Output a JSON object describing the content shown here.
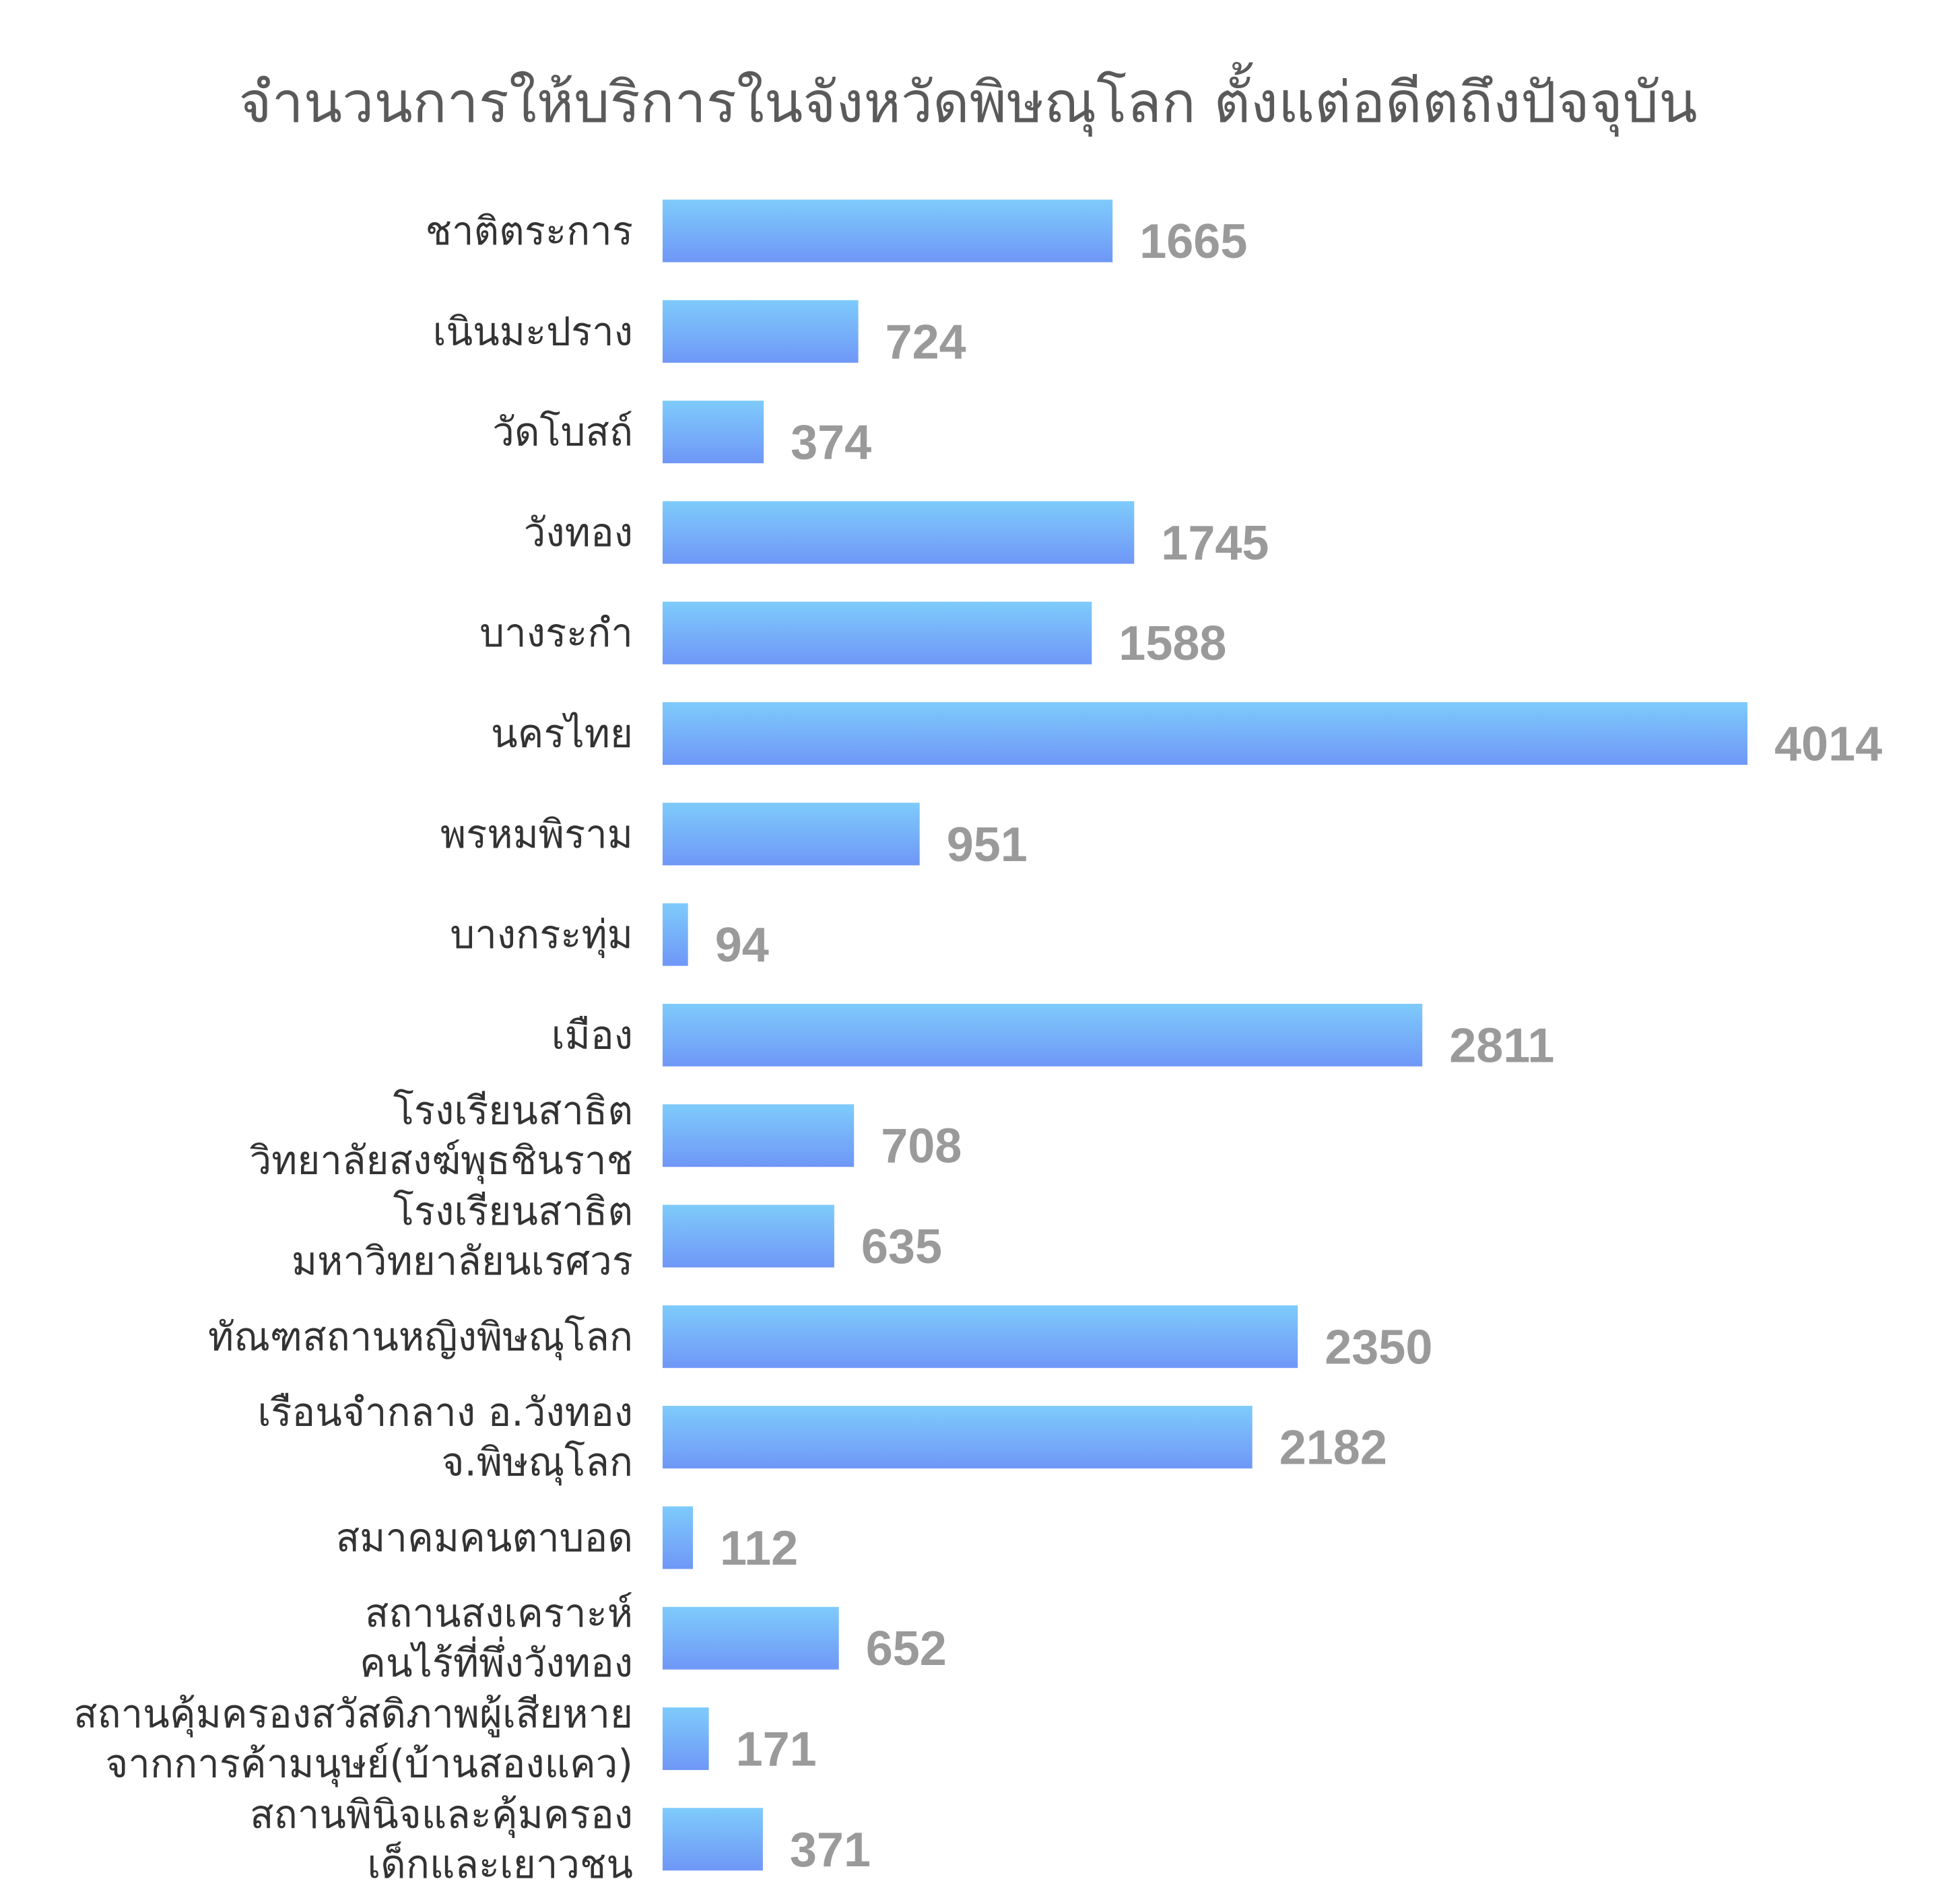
{
  "chart_data": {
    "type": "bar",
    "orientation": "horizontal",
    "title": "จำนวนการให้บริการในจังหวัดพิษณุโลก ตั้งแต่อดีตถึงปัจจุบัน",
    "categories": [
      [
        "ชาติตระการ"
      ],
      [
        "เนินมะปราง"
      ],
      [
        "วัดโบสถ์"
      ],
      [
        "วังทอง"
      ],
      [
        "บางระกำ"
      ],
      [
        "นครไทย"
      ],
      [
        "พรหมพิราม"
      ],
      [
        "บางกระทุ่ม"
      ],
      [
        "เมือง"
      ],
      [
        "โรงเรียนสาธิต",
        "วิทยาลัยสงฆ์พุธชินราช"
      ],
      [
        "โรงเรียนสาธิต",
        "มหาวิทยาลัยนเรศวร"
      ],
      [
        "ทัณฑสถานหญิงพิษณุโลก"
      ],
      [
        "เรือนจำกลาง อ.วังทอง",
        "จ.พิษณุโลก"
      ],
      [
        "สมาคมคนตาบอด"
      ],
      [
        "สถานสงเคราะห์",
        "คนไร้ที่พึ่งวังทอง"
      ],
      [
        "สถานคุ้มครองสวัสดิภาพผู้เสียหาย",
        "จากการค้ามนุษย์(บ้านสองแคว)"
      ],
      [
        "สถานพินิจและคุ้มครอง",
        "เด็กและเยาวชน"
      ]
    ],
    "values": [
      1665,
      724,
      374,
      1745,
      1588,
      4014,
      951,
      94,
      2811,
      708,
      635,
      2350,
      2182,
      112,
      652,
      171,
      371
    ],
    "value_labels": [
      "1665",
      "724",
      "374",
      "1745",
      "1588",
      "4014",
      "951",
      "94",
      "2811",
      "708",
      "635",
      "2350",
      "2182",
      "112",
      "652",
      "171",
      "371"
    ],
    "xlim": [
      0,
      4014
    ],
    "grid": false,
    "legend": "none",
    "colors": {
      "bar_top": "#7ecbfb",
      "bar_bottom": "#6f97f7",
      "label_text": "#333333",
      "value_text": "#9a9a9a",
      "title_text": "#5a5a5a"
    }
  }
}
